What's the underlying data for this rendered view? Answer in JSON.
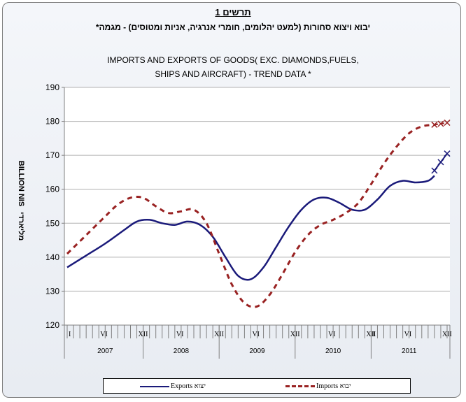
{
  "header": {
    "hebrew_title": "תרשים 1",
    "hebrew_subtitle": "יבוא ויצוא סחורות (למעט יהלומים, חומרי אנרגיה, אניות ומטוסים) - מגמה*"
  },
  "chart_data": {
    "type": "line",
    "title_line1": "IMPORTS AND EXPORTS OF GOODS( EXC. DIAMONDS,FUELS,",
    "title_line2": "SHIPS AND AIRCRAFT) - TREND DATA *",
    "ylabel_en": "BILLION NIS",
    "ylabel_he": "מליארדי",
    "ylim": [
      120,
      190
    ],
    "yticks": [
      120,
      130,
      140,
      150,
      160,
      170,
      180,
      190
    ],
    "month_tick_labels": [
      "I",
      "VI",
      "XII",
      "VI",
      "XII",
      "VI",
      "XII",
      "VI",
      "XII",
      "I",
      "VI",
      "XII"
    ],
    "years": [
      "2007",
      "2008",
      "2009",
      "2010",
      "2011"
    ],
    "grid": "horizontal",
    "legend": "bottom",
    "series": [
      {
        "name": "Exports יצוא",
        "color": "#1a1a7a",
        "style": "solid",
        "points": [
          {
            "t": 0,
            "v": 137
          },
          {
            "t": 3,
            "v": 140.5
          },
          {
            "t": 6,
            "v": 144
          },
          {
            "t": 9,
            "v": 148
          },
          {
            "t": 11,
            "v": 150.5
          },
          {
            "t": 13,
            "v": 151
          },
          {
            "t": 15,
            "v": 150
          },
          {
            "t": 17,
            "v": 149.5
          },
          {
            "t": 19,
            "v": 150.5
          },
          {
            "t": 21,
            "v": 149.5
          },
          {
            "t": 23,
            "v": 146
          },
          {
            "t": 25,
            "v": 140
          },
          {
            "t": 27,
            "v": 134.5
          },
          {
            "t": 29,
            "v": 133.5
          },
          {
            "t": 31,
            "v": 137
          },
          {
            "t": 33,
            "v": 143
          },
          {
            "t": 35,
            "v": 149
          },
          {
            "t": 37,
            "v": 154
          },
          {
            "t": 39,
            "v": 157
          },
          {
            "t": 41,
            "v": 157.5
          },
          {
            "t": 43,
            "v": 156
          },
          {
            "t": 45,
            "v": 154
          },
          {
            "t": 47,
            "v": 154
          },
          {
            "t": 49,
            "v": 157
          },
          {
            "t": 51,
            "v": 161
          },
          {
            "t": 53,
            "v": 162.5
          },
          {
            "t": 55,
            "v": 162
          },
          {
            "t": 57,
            "v": 162.5
          },
          {
            "t": 58,
            "v": 164
          }
        ],
        "provisional": [
          {
            "t": 58,
            "v": 165.5
          },
          {
            "t": 59,
            "v": 168
          },
          {
            "t": 60,
            "v": 170.5
          }
        ]
      },
      {
        "name": "Imports יבוא",
        "color": "#992222",
        "style": "dashed",
        "points": [
          {
            "t": 0,
            "v": 141
          },
          {
            "t": 3,
            "v": 146.5
          },
          {
            "t": 6,
            "v": 152
          },
          {
            "t": 8,
            "v": 155.5
          },
          {
            "t": 10,
            "v": 157.5
          },
          {
            "t": 12,
            "v": 157.5
          },
          {
            "t": 14,
            "v": 155
          },
          {
            "t": 16,
            "v": 153
          },
          {
            "t": 18,
            "v": 153.5
          },
          {
            "t": 20,
            "v": 154
          },
          {
            "t": 22,
            "v": 150
          },
          {
            "t": 24,
            "v": 141
          },
          {
            "t": 26,
            "v": 132
          },
          {
            "t": 28,
            "v": 126.5
          },
          {
            "t": 30,
            "v": 125.5
          },
          {
            "t": 32,
            "v": 129
          },
          {
            "t": 34,
            "v": 135
          },
          {
            "t": 36,
            "v": 141.5
          },
          {
            "t": 38,
            "v": 146.5
          },
          {
            "t": 40,
            "v": 149.5
          },
          {
            "t": 42,
            "v": 151
          },
          {
            "t": 44,
            "v": 153
          },
          {
            "t": 46,
            "v": 156
          },
          {
            "t": 48,
            "v": 161.5
          },
          {
            "t": 50,
            "v": 167.5
          },
          {
            "t": 52,
            "v": 172.5
          },
          {
            "t": 54,
            "v": 176.5
          },
          {
            "t": 56,
            "v": 178.5
          },
          {
            "t": 58,
            "v": 179
          }
        ],
        "provisional": [
          {
            "t": 58,
            "v": 179
          },
          {
            "t": 59,
            "v": 179.3
          },
          {
            "t": 60,
            "v": 179.6
          }
        ]
      }
    ]
  },
  "legend": {
    "exports_label": "Exports יצוא",
    "imports_label": "Imports יבוא"
  }
}
